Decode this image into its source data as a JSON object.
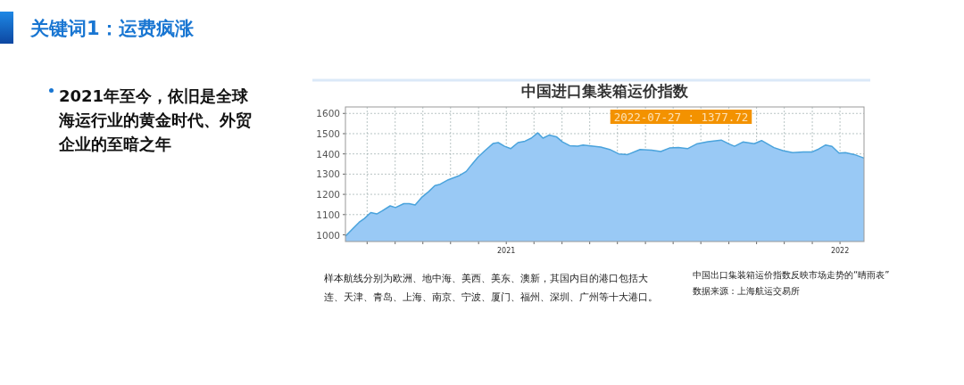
{
  "chart_data": {
    "type": "area",
    "title": "中国进口集装箱运价指数",
    "x": [
      2020.518,
      2020.535,
      2020.559,
      2020.575,
      2020.594,
      2020.612,
      2020.628,
      2020.652,
      2020.668,
      2020.693,
      2020.709,
      2020.727,
      2020.746,
      2020.767,
      2020.786,
      2020.802,
      2020.826,
      2020.842,
      2020.861,
      2020.88,
      2020.896,
      2020.914,
      2020.936,
      2020.96,
      2020.976,
      2020.995,
      2021.013,
      2021.035,
      2021.056,
      2021.075,
      2021.094,
      2021.11,
      2021.128,
      2021.15,
      2021.168,
      2021.19,
      2021.214,
      2021.23,
      2021.283,
      2021.31,
      2021.337,
      2021.364,
      2021.401,
      2021.436,
      2021.463,
      2021.489,
      2021.516,
      2021.543,
      2021.57,
      2021.604,
      2021.644,
      2021.668,
      2021.684,
      2021.709,
      2021.743,
      2021.765,
      2021.802,
      2021.829,
      2021.858,
      2021.89,
      2021.917,
      2021.936,
      2021.957,
      2021.976,
      2021.997,
      2022.016,
      2022.043,
      2022.072
    ],
    "series": [
      {
        "color": "#99c9f5",
        "values": [
          993,
          1022,
          1062,
          1081,
          1110,
          1103,
          1118,
          1143,
          1135,
          1154,
          1154,
          1147,
          1184,
          1213,
          1243,
          1250,
          1272,
          1282,
          1294,
          1313,
          1346,
          1382,
          1416,
          1451,
          1456,
          1438,
          1426,
          1456,
          1463,
          1478,
          1504,
          1478,
          1493,
          1485,
          1460,
          1441,
          1438,
          1444,
          1434,
          1422,
          1400,
          1397,
          1422,
          1419,
          1412,
          1429,
          1431,
          1426,
          1449,
          1460,
          1468,
          1449,
          1438,
          1459,
          1450,
          1466,
          1431,
          1416,
          1406,
          1409,
          1410,
          1424,
          1444,
          1437,
          1404,
          1406,
          1397,
          1379
        ]
      }
    ],
    "xlim": [
      2020.518,
      2022.072
    ],
    "ylim": [
      967,
      1632
    ],
    "xticks": [
      {
        "value": 2020.583,
        "label": null
      },
      {
        "value": 2020.667,
        "label": null
      },
      {
        "value": 2020.75,
        "label": null
      },
      {
        "value": 2020.833,
        "label": null
      },
      {
        "value": 2020.917,
        "label": null
      },
      {
        "value": 2021,
        "label": "2021"
      },
      {
        "value": 2021.083,
        "label": null
      },
      {
        "value": 2021.167,
        "label": null
      },
      {
        "value": 2021.25,
        "label": null
      },
      {
        "value": 2021.333,
        "label": null
      },
      {
        "value": 2021.417,
        "label": null
      },
      {
        "value": 2021.5,
        "label": null
      },
      {
        "value": 2021.583,
        "label": null
      },
      {
        "value": 2021.667,
        "label": null
      },
      {
        "value": 2021.75,
        "label": null
      },
      {
        "value": 2021.833,
        "label": null
      },
      {
        "value": 2021.917,
        "label": null
      },
      {
        "value": 2022,
        "label": "2022"
      }
    ],
    "yticks": [
      1000,
      1100,
      1200,
      1300,
      1400,
      1500,
      1600
    ],
    "grid": true,
    "annotations": [
      "2022-07-27 : 1377.72",
      "关键词1：运费疯涨",
      "2021年至今，依旧是全球海运行业的黄金时代、外贸企业的至暗之年",
      "样本航线分别为欧洲、地中海、美西、美东、澳新，其国内目的港口包括大连、天津、青岛、上海、南京、宁波、厦门、福州、深圳、广州等十大港口。",
      "中国出口集装箱运价指数反映市场走势的“晴雨表”",
      "数据来源：上海航运交易所"
    ]
  }
}
